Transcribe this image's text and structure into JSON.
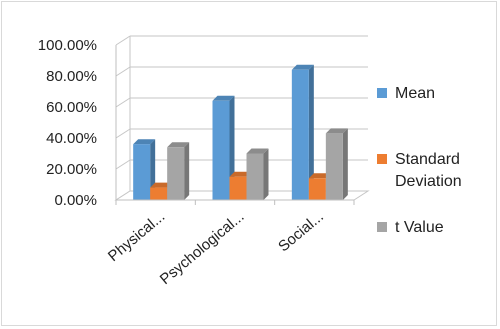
{
  "chart_data": {
    "type": "bar",
    "categories": [
      "Physical...",
      "Psychological...",
      "Social..."
    ],
    "series": [
      {
        "name": "Mean",
        "color": "#5b9bd5",
        "values": [
          36,
          64,
          84
        ]
      },
      {
        "name": "Standard Deviation",
        "color": "#ed7d31",
        "values": [
          8,
          15,
          14
        ]
      },
      {
        "name": "t Value",
        "color": "#a5a5a5",
        "values": [
          34,
          30,
          43
        ]
      }
    ],
    "y_ticks": [
      "0.00%",
      "20.00%",
      "40.00%",
      "60.00%",
      "80.00%",
      "100.00%"
    ],
    "ylim": [
      0,
      100
    ],
    "legend_position": "right",
    "style": "3d-clustered-column"
  }
}
